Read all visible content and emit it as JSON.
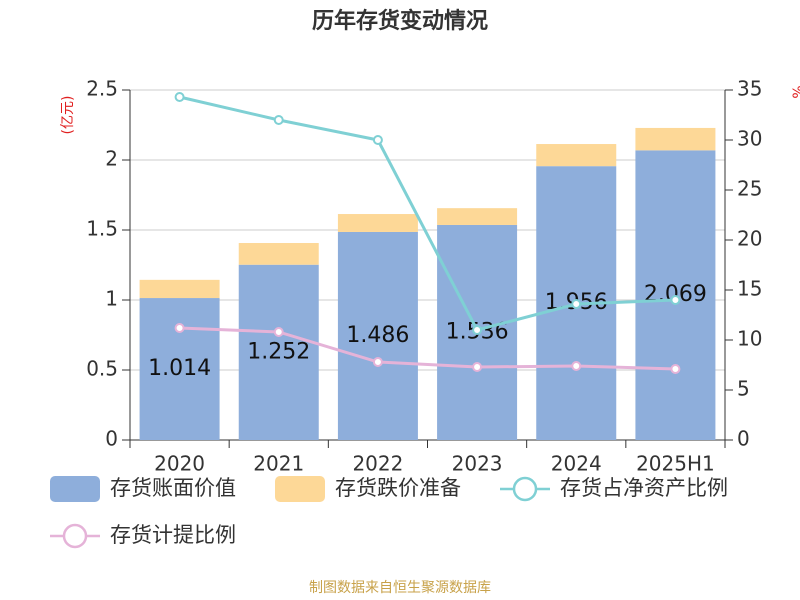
{
  "chart_data": {
    "type": "bar",
    "title": "历年存货变动情况",
    "y_label": "(亿元)",
    "y2_label": "%",
    "categories": [
      "2020",
      "2021",
      "2022",
      "2023",
      "2024",
      "2025H1"
    ],
    "stacked": true,
    "series": [
      {
        "name": "存货账面价值",
        "type": "bar",
        "color": "#8eaedb",
        "values": [
          1.014,
          1.252,
          1.486,
          1.536,
          1.956,
          2.069
        ],
        "data_labels": true
      },
      {
        "name": "存货跌价准备",
        "type": "bar",
        "color": "#fdd897",
        "values": [
          0.13,
          0.155,
          0.128,
          0.12,
          0.158,
          0.16
        ]
      },
      {
        "name": "存货占净资产比例",
        "type": "line",
        "axis": "y2",
        "color": "#7fd0d4",
        "values": [
          34.3,
          32,
          30,
          11,
          13.6,
          14
        ]
      },
      {
        "name": "存货计提比例",
        "type": "line",
        "axis": "y2",
        "color": "#e5b3d8",
        "values": [
          11.2,
          10.8,
          7.8,
          7.3,
          7.4,
          7.1
        ]
      }
    ],
    "ylim": [
      0,
      2.5
    ],
    "yticks": [
      0,
      0.5,
      1,
      1.5,
      2,
      2.5
    ],
    "y2lim": [
      0,
      35
    ],
    "y2ticks": [
      0,
      5,
      10,
      15,
      20,
      25,
      30,
      35
    ],
    "grid": true,
    "source": "制图数据来自恒生聚源数据库"
  }
}
